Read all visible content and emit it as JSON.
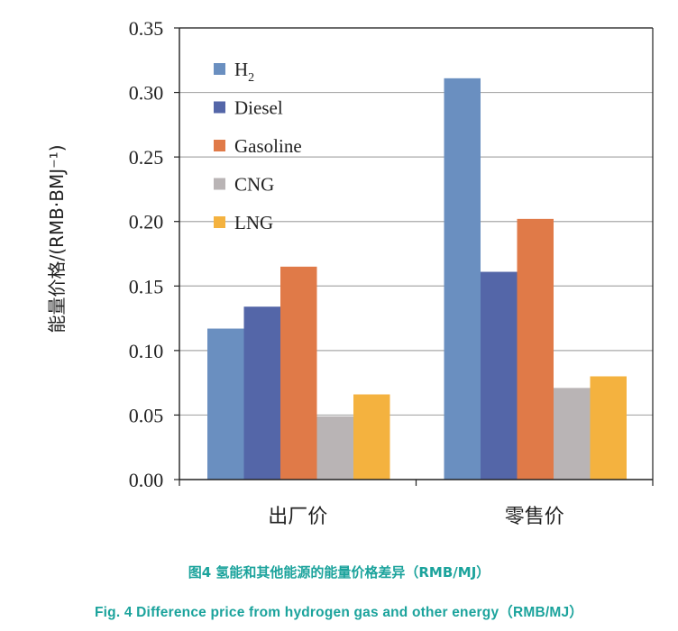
{
  "chart_data": {
    "type": "bar",
    "categories": [
      "出厂价",
      "零售价"
    ],
    "series": [
      {
        "name": "H2",
        "legend_main": "H",
        "legend_sub": "2",
        "color": "#6a8fc0",
        "values": [
          0.117,
          0.311
        ]
      },
      {
        "name": "Diesel",
        "color": "#5466a8",
        "values": [
          0.134,
          0.161
        ]
      },
      {
        "name": "Gasoline",
        "color": "#e07a48",
        "values": [
          0.165,
          0.202
        ]
      },
      {
        "name": "CNG",
        "color": "#b9b4b5",
        "values": [
          0.049,
          0.071
        ]
      },
      {
        "name": "LNG",
        "color": "#f4b23f",
        "values": [
          0.066,
          0.08
        ]
      }
    ],
    "ylim": [
      0,
      0.35
    ],
    "yticks": [
      "0.00",
      "0.05",
      "0.10",
      "0.15",
      "0.20",
      "0.25",
      "0.30",
      "0.35"
    ],
    "ylabel": "能量价格/(RMB·BMJ⁻¹)",
    "grid": true,
    "legend_position": "top-left"
  },
  "caption": {
    "chinese": "图4 氢能和其他能源的能量价格差异（RMB/MJ）",
    "english": "Fig. 4 Difference price from hydrogen gas and other energy（RMB/MJ）"
  }
}
